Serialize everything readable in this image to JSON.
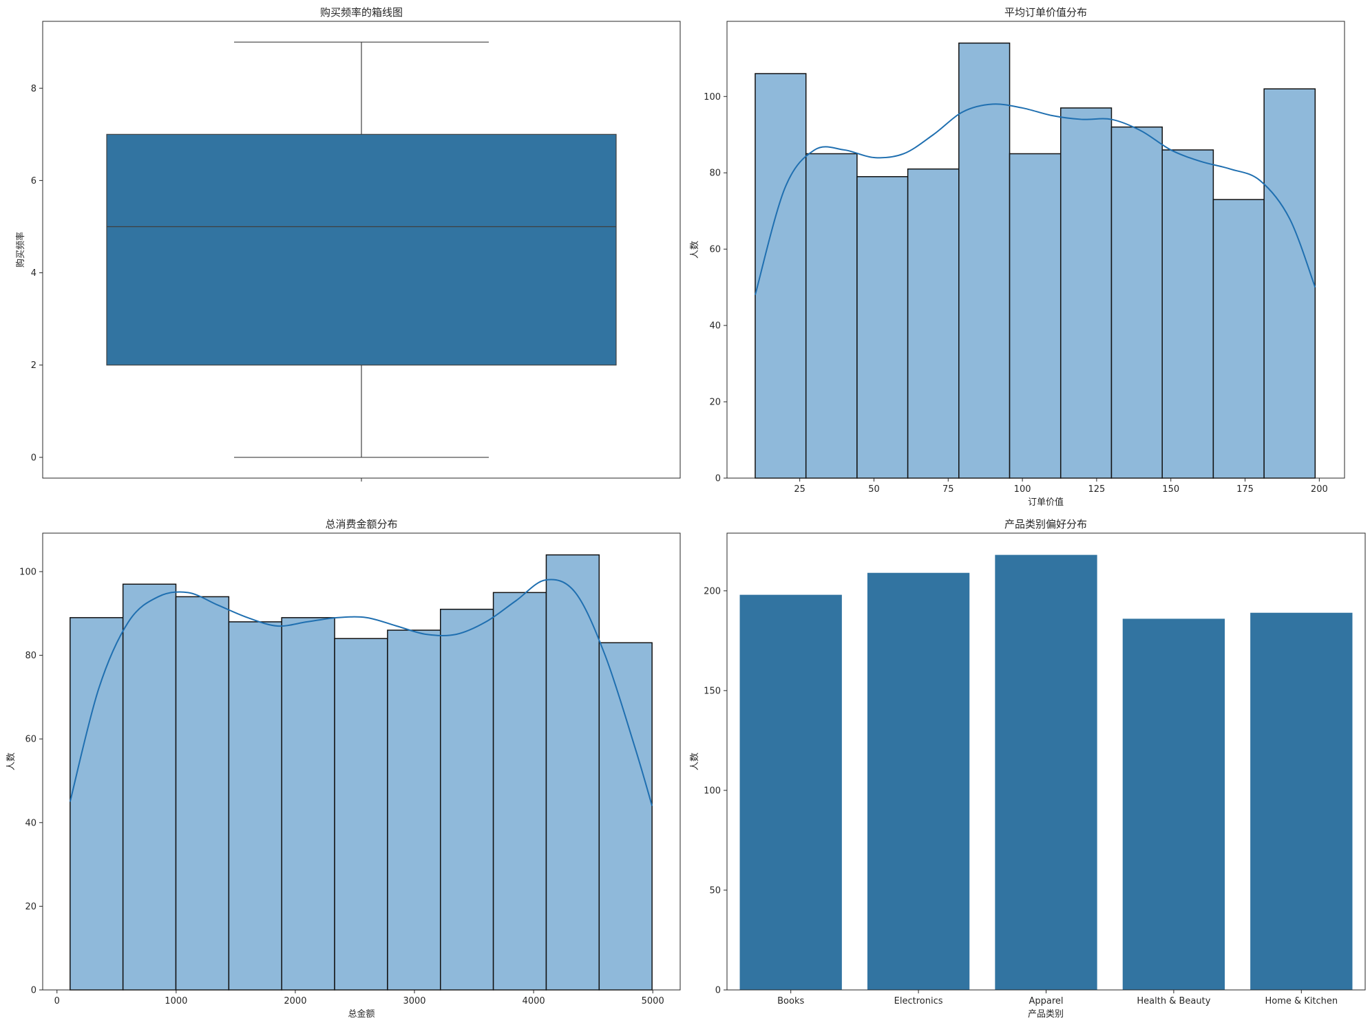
{
  "chart_data": [
    {
      "type": "box",
      "title": "购买频率的箱线图",
      "xlabel": "",
      "ylabel": "购买频率",
      "ylim": [
        -0.45,
        9.45
      ],
      "yticks": [
        0,
        2,
        4,
        6,
        8
      ],
      "stats": {
        "min": 0,
        "q1": 2,
        "median": 5,
        "q3": 7,
        "max": 9
      },
      "colors": {
        "box": "#3274a1",
        "line": "#3f3f3f"
      }
    },
    {
      "type": "histogram",
      "title": "平均订单价值分布",
      "xlabel": "订单价值",
      "ylabel": "人数",
      "xlim": [
        0.5,
        208.5
      ],
      "ylim": [
        0,
        119.7
      ],
      "xticks": [
        25,
        50,
        75,
        100,
        125,
        150,
        175,
        200
      ],
      "yticks": [
        0,
        20,
        40,
        60,
        80,
        100
      ],
      "bin_edges": [
        10.0,
        27.1,
        44.3,
        61.4,
        78.6,
        95.7,
        112.9,
        130.0,
        147.1,
        164.3,
        181.4,
        198.6
      ],
      "counts": [
        106,
        85,
        79,
        81,
        114,
        85,
        97,
        92,
        86,
        73,
        102
      ],
      "kde": {
        "x": [
          10,
          20,
          30,
          40,
          50,
          60,
          70,
          80,
          90,
          100,
          110,
          120,
          130,
          140,
          150,
          160,
          170,
          180,
          190,
          198.6
        ],
        "y": [
          48,
          76,
          86,
          86,
          84,
          85,
          90,
          96,
          98,
          97,
          95,
          94,
          94,
          91,
          86,
          83,
          81,
          78,
          68,
          50
        ]
      },
      "colors": {
        "bar": "#8fb9da",
        "edge": "#111111",
        "kde": "#1f6fb0"
      }
    },
    {
      "type": "histogram",
      "title": "总消费金额分布",
      "xlabel": "总金额",
      "ylabel": "人数",
      "xlim": [
        -120,
        5230
      ],
      "ylim": [
        0,
        109.2
      ],
      "xticks": [
        0,
        1000,
        2000,
        3000,
        4000,
        5000
      ],
      "yticks": [
        0,
        20,
        40,
        60,
        80,
        100
      ],
      "bin_edges": [
        110,
        554,
        998,
        1442,
        1886,
        2330,
        2774,
        3218,
        3662,
        4106,
        4550,
        4994
      ],
      "counts": [
        89,
        97,
        94,
        88,
        89,
        84,
        86,
        91,
        95,
        104,
        83
      ],
      "kde": {
        "x": [
          110,
          350,
          600,
          850,
          1100,
          1350,
          1600,
          1850,
          2100,
          2350,
          2600,
          2850,
          3100,
          3350,
          3600,
          3850,
          4100,
          4350,
          4600,
          4850,
          4994
        ],
        "y": [
          45,
          72,
          88,
          94,
          95,
          92,
          89,
          87,
          88,
          89,
          89,
          87,
          85,
          85,
          88,
          93,
          98,
          95,
          80,
          58,
          44
        ]
      },
      "colors": {
        "bar": "#8fb9da",
        "edge": "#111111",
        "kde": "#1f6fb0"
      }
    },
    {
      "type": "bar",
      "title": "产品类别偏好分布",
      "xlabel": "产品类别",
      "ylabel": "人数",
      "ylim": [
        0,
        228.9
      ],
      "yticks": [
        0,
        50,
        100,
        150,
        200
      ],
      "categories": [
        "Books",
        "Electronics",
        "Apparel",
        "Health & Beauty",
        "Home & Kitchen"
      ],
      "values": [
        198,
        209,
        218,
        186,
        189
      ],
      "colors": {
        "bar": "#3274a1"
      }
    }
  ]
}
